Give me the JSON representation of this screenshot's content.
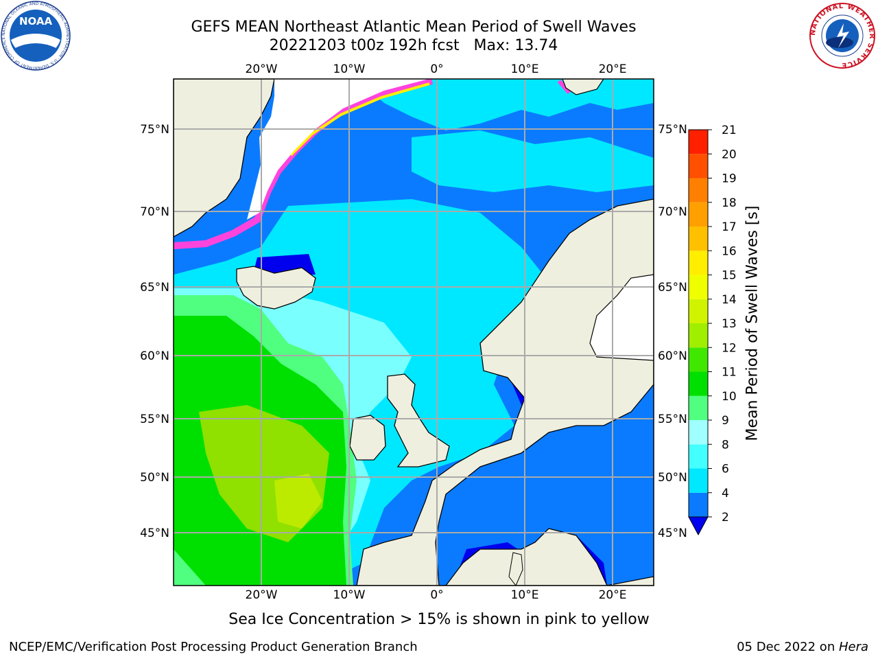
{
  "title": {
    "line1": "GEFS MEAN Northeast Atlantic Mean Period of Swell Waves",
    "line2": "20221203 t00z 192h fcst   Max: 13.74"
  },
  "map": {
    "lon_ticks_top": [
      "20°W",
      "10°W",
      "0°",
      "10°E",
      "20°E"
    ],
    "lon_ticks_bottom": [
      "20°W",
      "10°W",
      "0°",
      "10°E",
      "20°E"
    ],
    "lat_ticks_left": [
      "75°N",
      "70°N",
      "65°N",
      "60°N",
      "55°N",
      "50°N",
      "45°N"
    ],
    "lat_ticks_right": [
      "75°N",
      "70°N",
      "65°N",
      "60°N",
      "55°N",
      "50°N",
      "45°N"
    ],
    "land_color": "#efefdf",
    "ocean_colors": [
      "#0000ee",
      "#0a7bff",
      "#00e8ff",
      "#7affff",
      "#50ff80",
      "#00e000",
      "#90e000"
    ]
  },
  "colorbar": {
    "label": "Mean Period of Swell Waves [s]",
    "ticks": [
      "2",
      "4",
      "6",
      "8",
      "9",
      "10",
      "11",
      "12",
      "13",
      "14",
      "15",
      "16",
      "17",
      "18",
      "19",
      "20",
      "21"
    ],
    "colors": [
      "#0a7bff",
      "#00e8ff",
      "#44ffff",
      "#a0ffff",
      "#50ff80",
      "#00e000",
      "#40e800",
      "#a0ee00",
      "#d0f400",
      "#f0ff00",
      "#ffee00",
      "#ffc000",
      "#ffa000",
      "#ff8000",
      "#ff5000",
      "#ff2000"
    ],
    "under_color": "#0000ee"
  },
  "note": "Sea Ice Concentration > 15% is shown in pink to yellow",
  "footer": {
    "left": "NCEP/EMC/Verification Post Processing Product Generation Branch",
    "date": "05 Dec 2022 on ",
    "host": "Hera"
  },
  "logos": {
    "noaa": "NOAA",
    "noaa_ring": "NATIONAL OCEANIC AND ATMOSPHERIC ADMINISTRATION · U.S. DEPARTMENT OF COMMERCE",
    "nws_ring": "NATIONAL WEATHER SERVICE"
  }
}
